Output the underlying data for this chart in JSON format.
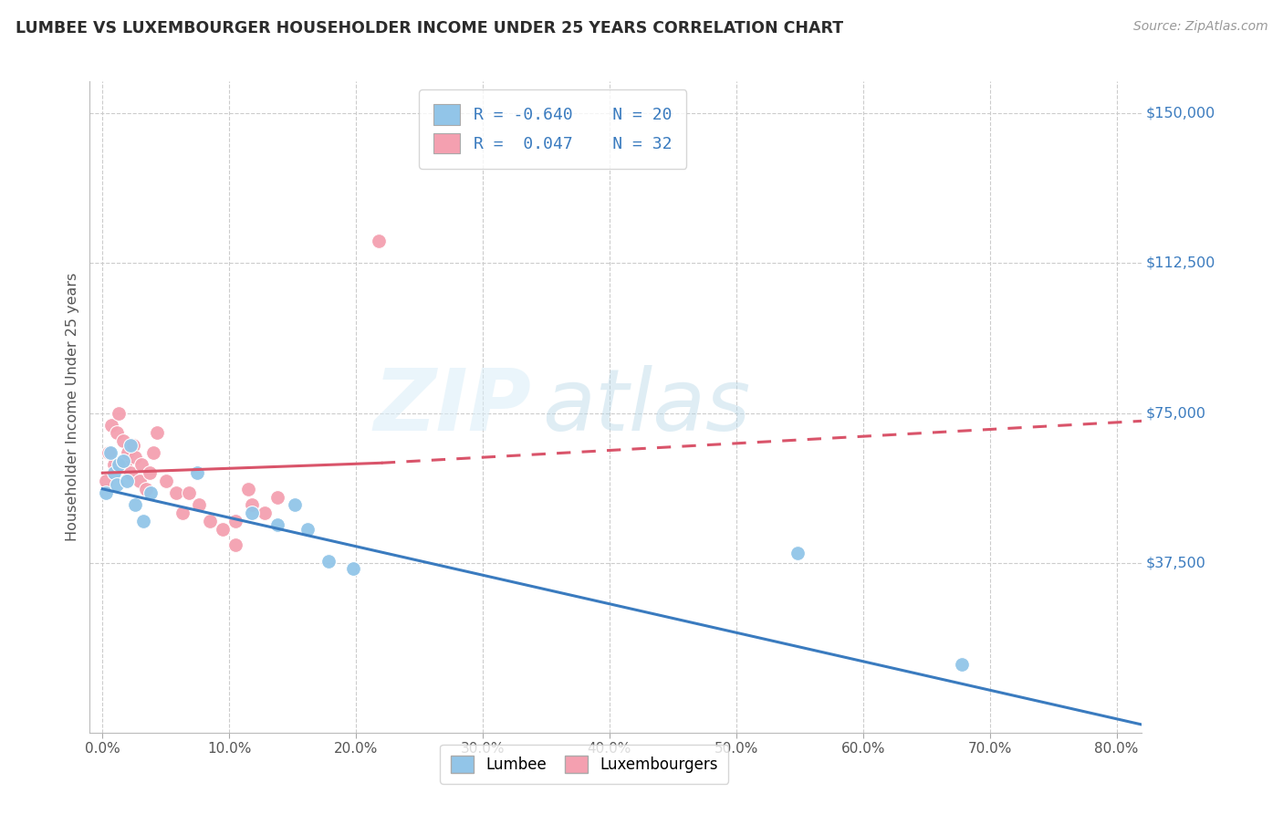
{
  "title": "LUMBEE VS LUXEMBOURGER HOUSEHOLDER INCOME UNDER 25 YEARS CORRELATION CHART",
  "source": "Source: ZipAtlas.com",
  "ylabel": "Householder Income Under 25 years",
  "xlabel_ticks": [
    "0.0%",
    "10.0%",
    "20.0%",
    "30.0%",
    "40.0%",
    "50.0%",
    "60.0%",
    "70.0%",
    "80.0%"
  ],
  "xlabel_vals": [
    0.0,
    0.1,
    0.2,
    0.3,
    0.4,
    0.5,
    0.6,
    0.7,
    0.8
  ],
  "ytick_labels": [
    "$37,500",
    "$75,000",
    "$112,500",
    "$150,000"
  ],
  "ytick_vals": [
    37500,
    75000,
    112500,
    150000
  ],
  "ylim": [
    -5000,
    158000
  ],
  "xlim": [
    -0.01,
    0.82
  ],
  "watermark_zip": "ZIP",
  "watermark_atlas": "atlas",
  "lumbee_color": "#92c5e8",
  "luxembourger_color": "#f4a0b0",
  "lumbee_line_color": "#3a7bbf",
  "luxembourger_line_color": "#d9546a",
  "lumbee_R": -0.64,
  "lumbee_N": 20,
  "luxembourger_R": 0.047,
  "luxembourger_N": 32,
  "lumbee_x": [
    0.003,
    0.006,
    0.009,
    0.011,
    0.013,
    0.016,
    0.019,
    0.022,
    0.026,
    0.032,
    0.038,
    0.075,
    0.118,
    0.138,
    0.152,
    0.162,
    0.178,
    0.198,
    0.548,
    0.678
  ],
  "lumbee_y": [
    55000,
    65000,
    60000,
    57000,
    62000,
    63000,
    58000,
    67000,
    52000,
    48000,
    55000,
    60000,
    50000,
    47000,
    52000,
    46000,
    38000,
    36000,
    40000,
    12000
  ],
  "luxembourger_x": [
    0.003,
    0.005,
    0.007,
    0.009,
    0.011,
    0.013,
    0.016,
    0.018,
    0.02,
    0.022,
    0.024,
    0.026,
    0.029,
    0.031,
    0.034,
    0.037,
    0.04,
    0.043,
    0.05,
    0.058,
    0.063,
    0.068,
    0.076,
    0.085,
    0.095,
    0.105,
    0.115,
    0.128,
    0.138,
    0.218,
    0.105,
    0.118
  ],
  "luxembourger_y": [
    58000,
    65000,
    72000,
    62000,
    70000,
    75000,
    68000,
    62000,
    65000,
    60000,
    67000,
    64000,
    58000,
    62000,
    56000,
    60000,
    65000,
    70000,
    58000,
    55000,
    50000,
    55000,
    52000,
    48000,
    46000,
    42000,
    56000,
    50000,
    54000,
    118000,
    48000,
    52000
  ],
  "lux_outlier_x": [
    0.218
  ],
  "lux_outlier_y": [
    118000
  ],
  "background_color": "#ffffff",
  "grid_color": "#cccccc",
  "title_color": "#2c2c2c",
  "axis_label_color": "#555555",
  "right_label_color": "#3a7bbf",
  "legend_R_color": "#3a7bbf",
  "lumbee_line_x0": 0.0,
  "lumbee_line_y0": 56000,
  "lumbee_line_x1": 0.82,
  "lumbee_line_y1": -3000,
  "lux_line_solid_x0": 0.0,
  "lux_line_solid_y0": 60000,
  "lux_line_solid_x1": 0.22,
  "lux_line_solid_y1": 62500,
  "lux_line_dash_x0": 0.22,
  "lux_line_dash_y0": 62500,
  "lux_line_dash_x1": 0.82,
  "lux_line_dash_y1": 73000
}
